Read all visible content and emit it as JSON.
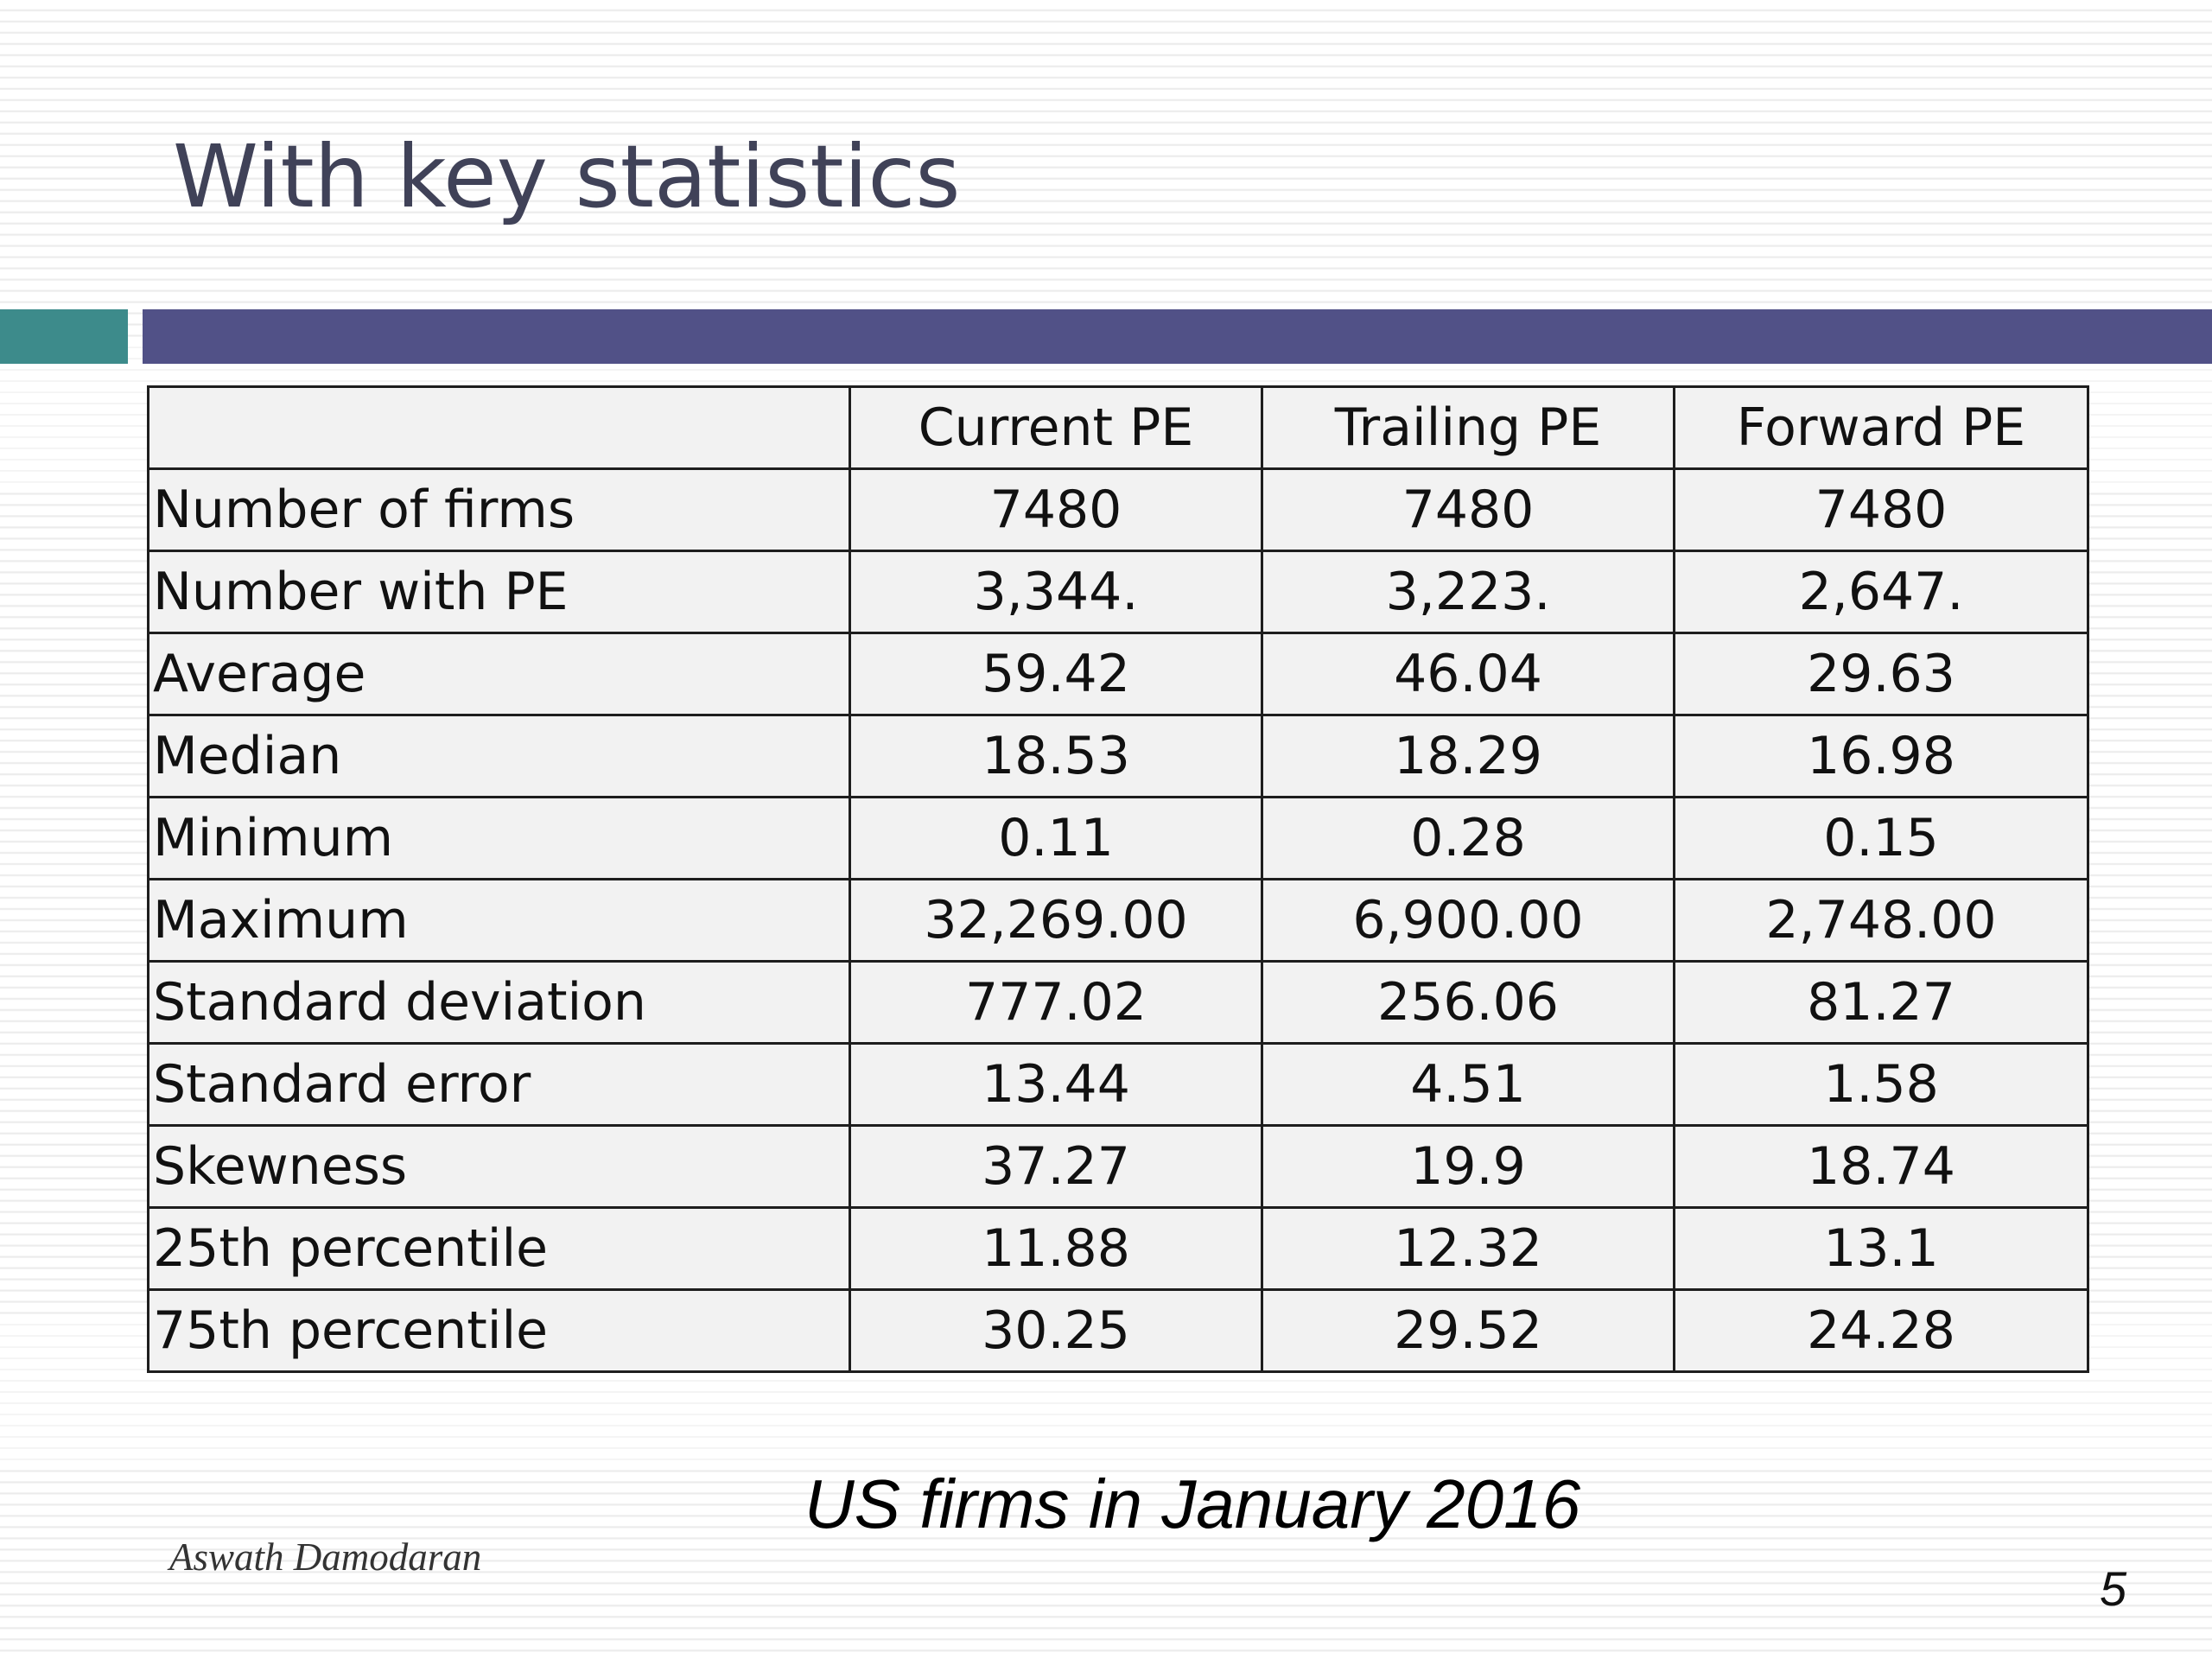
{
  "slide": {
    "title": "With key statistics",
    "caption": "US firms in January 2016",
    "author": "Aswath Damodaran",
    "page_number": "5",
    "colors": {
      "title_text": "#404258",
      "accent_bar": "#3d8b8b",
      "main_bar": "#515187",
      "table_fill": "#f2f2f2",
      "table_border": "#1e1e1e"
    }
  },
  "table": {
    "headers": [
      "",
      "Current PE",
      "Trailing PE",
      "Forward PE"
    ],
    "rows": [
      {
        "label": "Number of firms",
        "current": "7480",
        "trailing": "7480",
        "forward": "7480"
      },
      {
        "label": "Number with PE",
        "current": "3,344.",
        "trailing": "3,223.",
        "forward": "2,647."
      },
      {
        "label": "Average",
        "current": "59.42",
        "trailing": "46.04",
        "forward": "29.63"
      },
      {
        "label": "Median",
        "current": "18.53",
        "trailing": "18.29",
        "forward": "16.98"
      },
      {
        "label": "Minimum",
        "current": "0.11",
        "trailing": "0.28",
        "forward": "0.15"
      },
      {
        "label": "Maximum",
        "current": "32,269.00",
        "trailing": "6,900.00",
        "forward": "2,748.00"
      },
      {
        "label": "Standard deviation",
        "current": "777.02",
        "trailing": "256.06",
        "forward": "81.27"
      },
      {
        "label": "Standard error",
        "current": "13.44",
        "trailing": "4.51",
        "forward": "1.58"
      },
      {
        "label": "Skewness",
        "current": "37.27",
        "trailing": "19.9",
        "forward": "18.74"
      },
      {
        "label": "25th percentile",
        "current": "11.88",
        "trailing": "12.32",
        "forward": "13.1"
      },
      {
        "label": "75th percentile",
        "current": "30.25",
        "trailing": "29.52",
        "forward": "24.28"
      }
    ]
  }
}
